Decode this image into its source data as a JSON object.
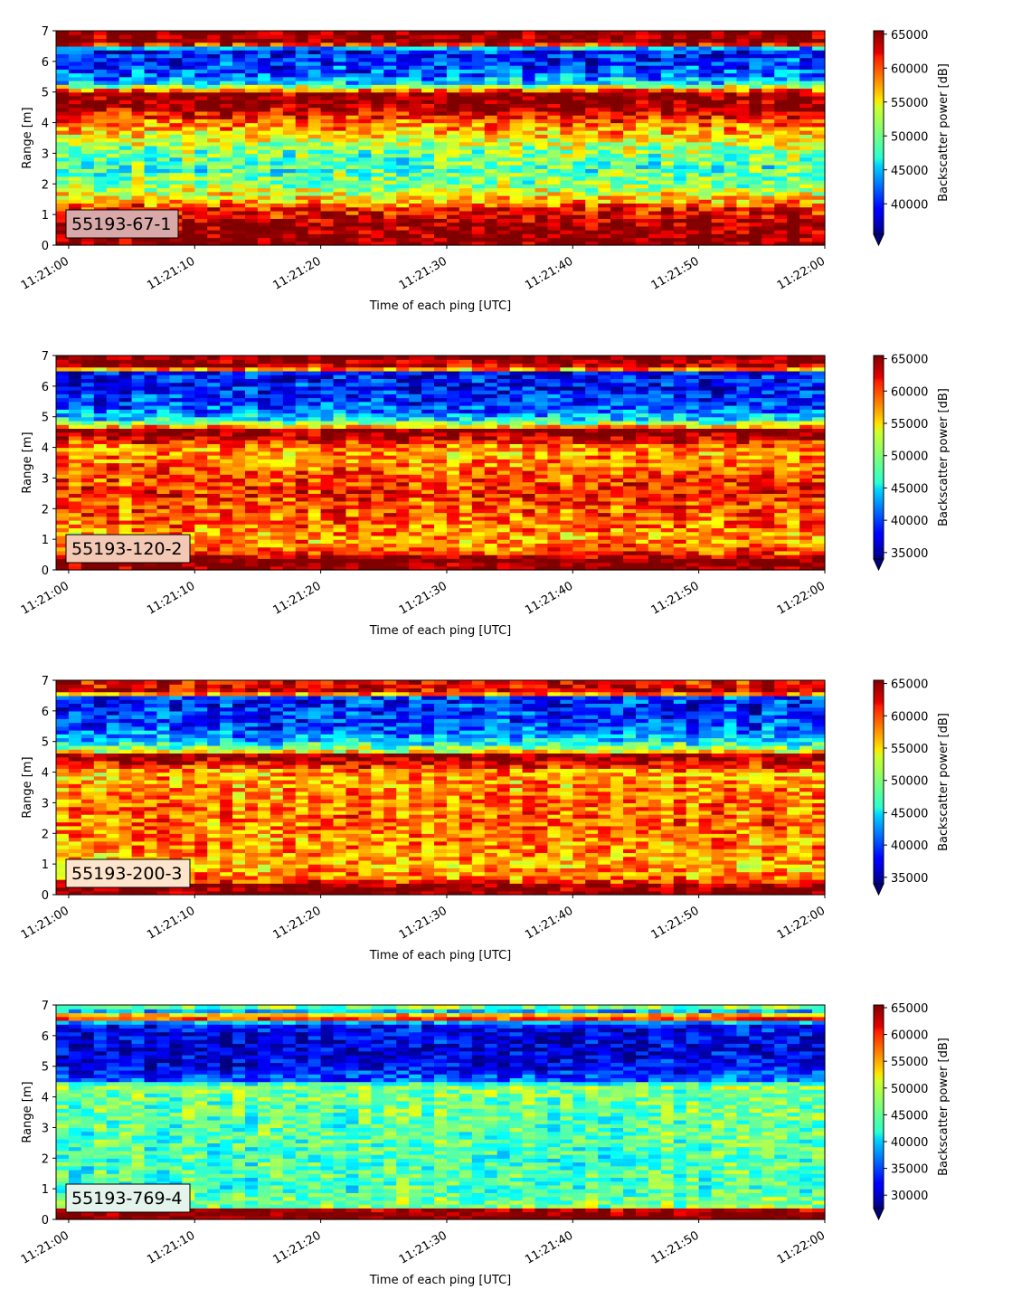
{
  "figure": {
    "background": "#ffffff"
  },
  "chart_data": [
    {
      "type": "heatmap",
      "label": "55193-67-1",
      "label_box_color": "#d9a9a9",
      "xlabel": "Time of each ping [UTC]",
      "ylabel": "Range [m]",
      "colorbar_label": "Backscatter power [dB]",
      "xlim": [
        "11:20:59",
        "11:22:00"
      ],
      "ylim": [
        0,
        7
      ],
      "xticks": [
        "11:21:00",
        "11:21:10",
        "11:21:20",
        "11:21:30",
        "11:21:40",
        "11:21:50",
        "11:22:00"
      ],
      "yticks": [
        0,
        1,
        2,
        3,
        4,
        5,
        6,
        7
      ],
      "clim": [
        35500,
        65500
      ],
      "colorbar_ticks": [
        40000,
        45000,
        50000,
        55000,
        60000,
        65000
      ],
      "colorbar_extend": "min",
      "colormap": "jet",
      "range_profile": [
        [
          0.0,
          65500
        ],
        [
          0.25,
          65500
        ],
        [
          0.75,
          64500
        ],
        [
          1.2,
          61000
        ],
        [
          1.5,
          56000
        ],
        [
          2.0,
          51000
        ],
        [
          2.5,
          49000
        ],
        [
          3.0,
          50000
        ],
        [
          3.5,
          54000
        ],
        [
          4.0,
          59000
        ],
        [
          4.45,
          64000
        ],
        [
          4.55,
          65500
        ],
        [
          4.95,
          65500
        ],
        [
          5.05,
          60000
        ],
        [
          5.3,
          46000
        ],
        [
          5.6,
          42000
        ],
        [
          6.0,
          40500
        ],
        [
          6.4,
          40000
        ],
        [
          6.6,
          66000
        ],
        [
          7.0,
          66000
        ]
      ]
    },
    {
      "type": "heatmap",
      "label": "55193-120-2",
      "label_box_color": "#f3c9b6",
      "xlabel": "Time of each ping [UTC]",
      "ylabel": "Range [m]",
      "colorbar_label": "Backscatter power [dB]",
      "xlim": [
        "11:20:59",
        "11:22:00"
      ],
      "ylim": [
        0,
        7
      ],
      "xticks": [
        "11:21:00",
        "11:21:10",
        "11:21:20",
        "11:21:30",
        "11:21:40",
        "11:21:50",
        "11:22:00"
      ],
      "yticks": [
        0,
        1,
        2,
        3,
        4,
        5,
        6,
        7
      ],
      "clim": [
        34000,
        65500
      ],
      "colorbar_ticks": [
        35000,
        40000,
        45000,
        50000,
        55000,
        60000,
        65000
      ],
      "colorbar_extend": "min",
      "colormap": "jet",
      "range_profile": [
        [
          0.0,
          66000
        ],
        [
          0.35,
          66000
        ],
        [
          0.55,
          60000
        ],
        [
          1.0,
          56000
        ],
        [
          1.5,
          58000
        ],
        [
          2.0,
          59000
        ],
        [
          2.5,
          60500
        ],
        [
          3.0,
          59500
        ],
        [
          3.5,
          57500
        ],
        [
          4.0,
          56500
        ],
        [
          4.4,
          65000
        ],
        [
          4.6,
          65500
        ],
        [
          4.7,
          55000
        ],
        [
          4.9,
          46000
        ],
        [
          5.2,
          41000
        ],
        [
          5.6,
          39000
        ],
        [
          6.0,
          38000
        ],
        [
          6.45,
          38000
        ],
        [
          6.6,
          63000
        ],
        [
          7.0,
          66000
        ]
      ]
    },
    {
      "type": "heatmap",
      "label": "55193-200-3",
      "label_box_color": "#fde4cc",
      "xlabel": "Time of each ping [UTC]",
      "ylabel": "Range [m]",
      "colorbar_label": "Backscatter power [dB]",
      "xlim": [
        "11:20:59",
        "11:22:00"
      ],
      "ylim": [
        0,
        7
      ],
      "xticks": [
        "11:21:00",
        "11:21:10",
        "11:21:20",
        "11:21:30",
        "11:21:40",
        "11:21:50",
        "11:22:00"
      ],
      "yticks": [
        0,
        1,
        2,
        3,
        4,
        5,
        6,
        7
      ],
      "clim": [
        34000,
        65500
      ],
      "colorbar_ticks": [
        35000,
        40000,
        45000,
        50000,
        55000,
        60000,
        65000
      ],
      "colorbar_extend": "min",
      "colormap": "jet",
      "range_profile": [
        [
          0.0,
          66000
        ],
        [
          0.3,
          65500
        ],
        [
          0.5,
          58000
        ],
        [
          1.0,
          56000
        ],
        [
          1.5,
          57000
        ],
        [
          2.0,
          57500
        ],
        [
          2.5,
          58500
        ],
        [
          3.0,
          58000
        ],
        [
          3.5,
          57000
        ],
        [
          4.0,
          56000
        ],
        [
          4.45,
          65000
        ],
        [
          4.6,
          65000
        ],
        [
          4.7,
          52000
        ],
        [
          5.0,
          45000
        ],
        [
          5.4,
          41000
        ],
        [
          5.8,
          39500
        ],
        [
          6.2,
          39000
        ],
        [
          6.45,
          40000
        ],
        [
          6.6,
          63000
        ],
        [
          7.0,
          62000
        ]
      ]
    },
    {
      "type": "heatmap",
      "label": "55193-769-4",
      "label_box_color": "#e4f3ec",
      "xlabel": "Time of each ping [UTC]",
      "ylabel": "Range [m]",
      "colorbar_label": "Backscatter power [dB]",
      "xlim": [
        "11:20:59",
        "11:22:00"
      ],
      "ylim": [
        0,
        7
      ],
      "xticks": [
        "11:21:00",
        "11:21:10",
        "11:21:20",
        "11:21:30",
        "11:21:40",
        "11:21:50",
        "11:22:00"
      ],
      "yticks": [
        0,
        1,
        2,
        3,
        4,
        5,
        6,
        7
      ],
      "clim": [
        27500,
        65500
      ],
      "colorbar_ticks": [
        30000,
        35000,
        40000,
        45000,
        50000,
        55000,
        60000,
        65000
      ],
      "colorbar_extend": "min",
      "colormap": "jet",
      "range_profile": [
        [
          0.0,
          66000
        ],
        [
          0.3,
          66000
        ],
        [
          0.4,
          47000
        ],
        [
          1.0,
          44000
        ],
        [
          1.5,
          44500
        ],
        [
          2.0,
          44000
        ],
        [
          2.5,
          45000
        ],
        [
          3.0,
          44500
        ],
        [
          3.5,
          45500
        ],
        [
          4.0,
          46000
        ],
        [
          4.4,
          47000
        ],
        [
          4.55,
          36000
        ],
        [
          5.0,
          32000
        ],
        [
          5.5,
          31000
        ],
        [
          6.0,
          31500
        ],
        [
          6.4,
          33000
        ],
        [
          6.6,
          65000
        ],
        [
          6.8,
          38000
        ],
        [
          7.0,
          50000
        ]
      ]
    }
  ]
}
